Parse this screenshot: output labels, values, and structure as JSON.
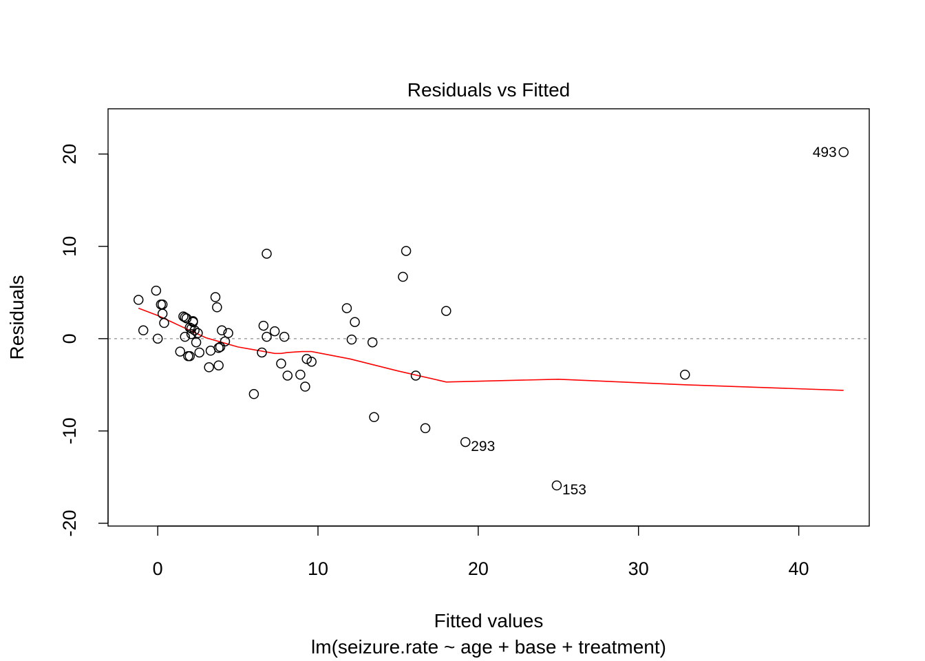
{
  "chart_data": {
    "type": "scatter",
    "title": "Residuals vs Fitted",
    "xlabel": "Fitted values",
    "subtitle": "lm(seizure.rate ~ age + base + treatment)",
    "ylabel": "Residuals",
    "xlim": [
      -3.1,
      44.4
    ],
    "ylim": [
      -20.3,
      24.9
    ],
    "x_ticks": [
      0,
      10,
      20,
      30,
      40
    ],
    "x_tick_labels": [
      "0",
      "10",
      "20",
      "30",
      "40"
    ],
    "y_ticks": [
      -20,
      -10,
      0,
      10,
      20
    ],
    "y_tick_labels": [
      "-20",
      "-10",
      "0",
      "10",
      "20"
    ],
    "zero_line": 0,
    "grid": false,
    "colors": {
      "points": "#000000",
      "smoother": "#ff0000",
      "zero_line": "#a8a8a8"
    },
    "points": [
      {
        "x": -1.2,
        "y": 4.2
      },
      {
        "x": -0.9,
        "y": 0.9
      },
      {
        "x": -0.1,
        "y": 5.2
      },
      {
        "x": 0.0,
        "y": 0.0
      },
      {
        "x": 0.2,
        "y": 3.7
      },
      {
        "x": 0.3,
        "y": 3.7
      },
      {
        "x": 0.3,
        "y": 2.7
      },
      {
        "x": 0.4,
        "y": 1.7
      },
      {
        "x": 1.4,
        "y": -1.4
      },
      {
        "x": 1.6,
        "y": 2.4
      },
      {
        "x": 1.7,
        "y": 2.3
      },
      {
        "x": 1.7,
        "y": 0.2
      },
      {
        "x": 1.8,
        "y": 2.2
      },
      {
        "x": 1.9,
        "y": -1.9
      },
      {
        "x": 2.0,
        "y": -1.9
      },
      {
        "x": 2.0,
        "y": 1.2
      },
      {
        "x": 2.1,
        "y": 1.1
      },
      {
        "x": 2.1,
        "y": 0.5
      },
      {
        "x": 2.2,
        "y": 1.9
      },
      {
        "x": 2.2,
        "y": 1.8
      },
      {
        "x": 2.3,
        "y": 0.9
      },
      {
        "x": 2.4,
        "y": -0.4
      },
      {
        "x": 2.5,
        "y": 0.6
      },
      {
        "x": 2.6,
        "y": -1.5
      },
      {
        "x": 3.2,
        "y": -3.1
      },
      {
        "x": 3.3,
        "y": -1.3
      },
      {
        "x": 3.6,
        "y": 4.5
      },
      {
        "x": 3.7,
        "y": 3.4
      },
      {
        "x": 3.8,
        "y": -2.9
      },
      {
        "x": 3.8,
        "y": -1.0
      },
      {
        "x": 3.9,
        "y": -0.9
      },
      {
        "x": 4.0,
        "y": 0.9
      },
      {
        "x": 4.2,
        "y": -0.3
      },
      {
        "x": 4.4,
        "y": 0.6
      },
      {
        "x": 6.0,
        "y": -6.0
      },
      {
        "x": 6.5,
        "y": -1.5
      },
      {
        "x": 6.6,
        "y": 1.4
      },
      {
        "x": 6.8,
        "y": 0.2
      },
      {
        "x": 6.8,
        "y": 9.2
      },
      {
        "x": 7.3,
        "y": 0.8
      },
      {
        "x": 7.7,
        "y": -2.7
      },
      {
        "x": 7.9,
        "y": 0.2
      },
      {
        "x": 8.1,
        "y": -4.0
      },
      {
        "x": 8.9,
        "y": -3.9
      },
      {
        "x": 9.2,
        "y": -5.2
      },
      {
        "x": 9.3,
        "y": -2.2
      },
      {
        "x": 9.6,
        "y": -2.5
      },
      {
        "x": 11.8,
        "y": 3.3
      },
      {
        "x": 12.1,
        "y": -0.1
      },
      {
        "x": 12.3,
        "y": 1.8
      },
      {
        "x": 13.4,
        "y": -0.4
      },
      {
        "x": 13.5,
        "y": -8.5
      },
      {
        "x": 15.3,
        "y": 6.7
      },
      {
        "x": 15.5,
        "y": 9.5
      },
      {
        "x": 16.1,
        "y": -4.0
      },
      {
        "x": 16.7,
        "y": -9.7
      },
      {
        "x": 18.0,
        "y": 3.0
      },
      {
        "x": 19.2,
        "y": -11.2,
        "label": "293"
      },
      {
        "x": 24.9,
        "y": -15.9,
        "label": "153"
      },
      {
        "x": 32.9,
        "y": -3.9
      },
      {
        "x": 42.8,
        "y": 20.2,
        "label": "493"
      }
    ],
    "smoother": [
      {
        "x": -1.2,
        "y": 3.3
      },
      {
        "x": 0.0,
        "y": 2.5
      },
      {
        "x": 1.0,
        "y": 1.7
      },
      {
        "x": 2.0,
        "y": 0.9
      },
      {
        "x": 3.0,
        "y": 0.1
      },
      {
        "x": 4.0,
        "y": -0.4
      },
      {
        "x": 5.0,
        "y": -0.9
      },
      {
        "x": 6.0,
        "y": -1.2
      },
      {
        "x": 7.3,
        "y": -1.6
      },
      {
        "x": 7.7,
        "y": -1.6
      },
      {
        "x": 8.1,
        "y": -1.5
      },
      {
        "x": 9.0,
        "y": -1.4
      },
      {
        "x": 9.6,
        "y": -1.4
      },
      {
        "x": 12.0,
        "y": -2.2
      },
      {
        "x": 15.0,
        "y": -3.5
      },
      {
        "x": 18.0,
        "y": -4.7
      },
      {
        "x": 25.0,
        "y": -4.4
      },
      {
        "x": 33.0,
        "y": -5.0
      },
      {
        "x": 42.8,
        "y": -5.6
      }
    ]
  }
}
